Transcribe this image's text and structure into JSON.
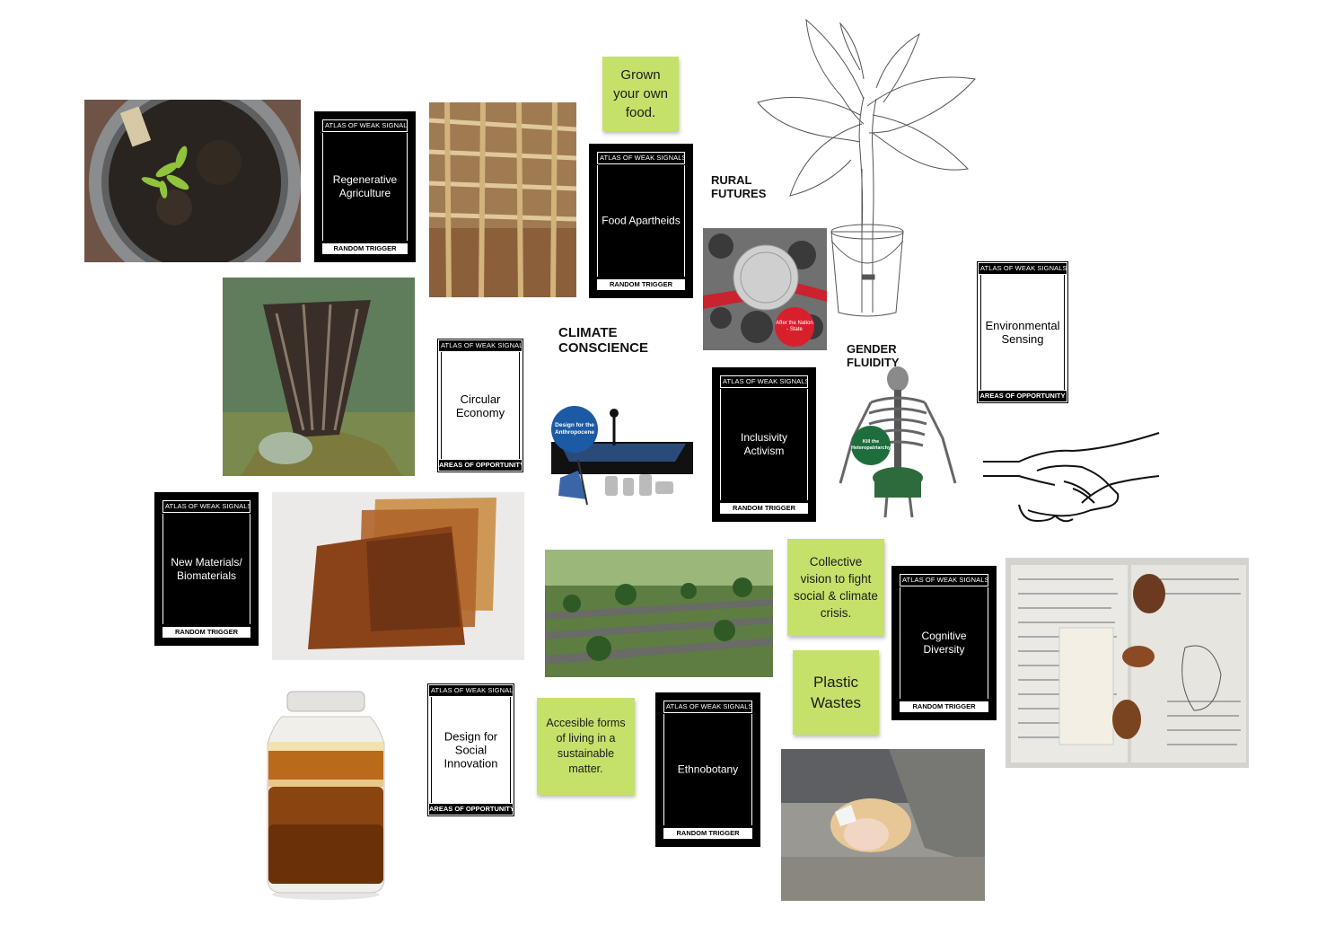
{
  "card_header_random": "ATLAS OF WEAK SIGNALS",
  "card_footer_random": "RANDOM TRIGGER",
  "card_footer_areas": "AREAS OF OPPORTUNITY",
  "cards": {
    "regenerative": "Regenerative Agriculture",
    "food_apartheids": "Food Apartheids",
    "circular_economy": "Circular Economy",
    "inclusivity": "Inclusivity Activism",
    "environmental": "Environmental Sensing",
    "new_materials": "New Materials/ Biomaterials",
    "cognitive": "Cognitive Diversity",
    "design_social": "Design for Social Innovation",
    "ethnobotany": "Ethnobotany"
  },
  "stickies": {
    "grown": "Grown your own food.",
    "collective": "Collective vision to fight social & climate crisis.",
    "plastic": "Plastic Wastes",
    "accesible": "Accesible forms of living in a sustainable matter."
  },
  "headings": {
    "rural": "RURAL FUTURES",
    "climate": "CLIMATE CONSCIENCE",
    "gender": "GENDER FLUIDITY"
  },
  "badges": {
    "anthropocene": "Design for the Anthropocene",
    "nation_state": "After the Nation - State",
    "heteropatriarchy": "Kill the Heteropatriarchy"
  },
  "colors": {
    "sticky": "#c6e16a",
    "badge_blue": "#1c5aa6",
    "badge_red": "#d8202c",
    "badge_green": "#1d6e3c"
  }
}
